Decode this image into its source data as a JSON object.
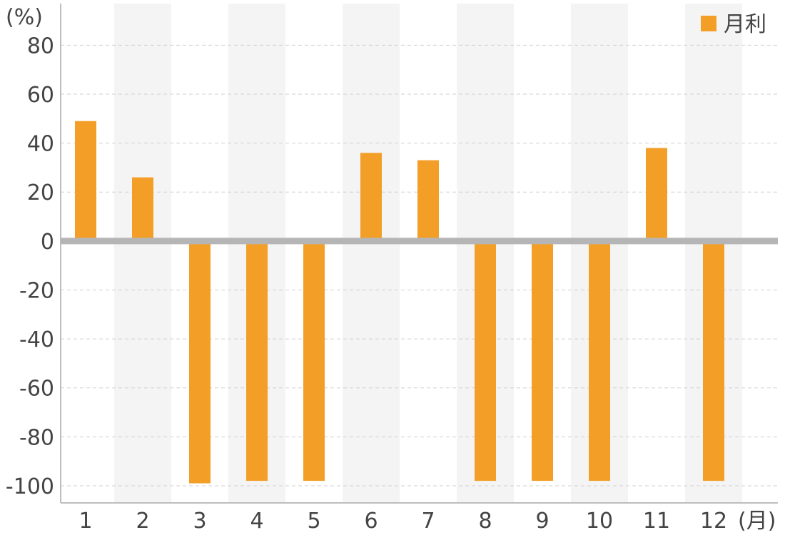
{
  "chart_data": {
    "type": "bar",
    "y_unit_label": "(%)",
    "x_unit_label": "(月)",
    "categories": [
      "1",
      "2",
      "3",
      "4",
      "5",
      "6",
      "7",
      "8",
      "9",
      "10",
      "11",
      "12"
    ],
    "series": [
      {
        "name": "月利",
        "color": "#f39f27",
        "values": [
          49,
          26,
          -99,
          -98,
          -98,
          36,
          33,
          -98,
          -98,
          -98,
          38,
          -98
        ]
      }
    ],
    "ylim": [
      -107,
      97
    ],
    "yticks": [
      "80",
      "60",
      "40",
      "20",
      "0",
      "-20",
      "-40",
      "-60",
      "-80",
      "-100"
    ],
    "ytick_values": [
      80,
      60,
      40,
      20,
      0,
      -20,
      -40,
      -60,
      -80,
      -100
    ],
    "grid": true,
    "alternating_band_color": "#f4f4f4",
    "zero_line_color": "#b5b5b5",
    "legend_position": "top-right"
  }
}
